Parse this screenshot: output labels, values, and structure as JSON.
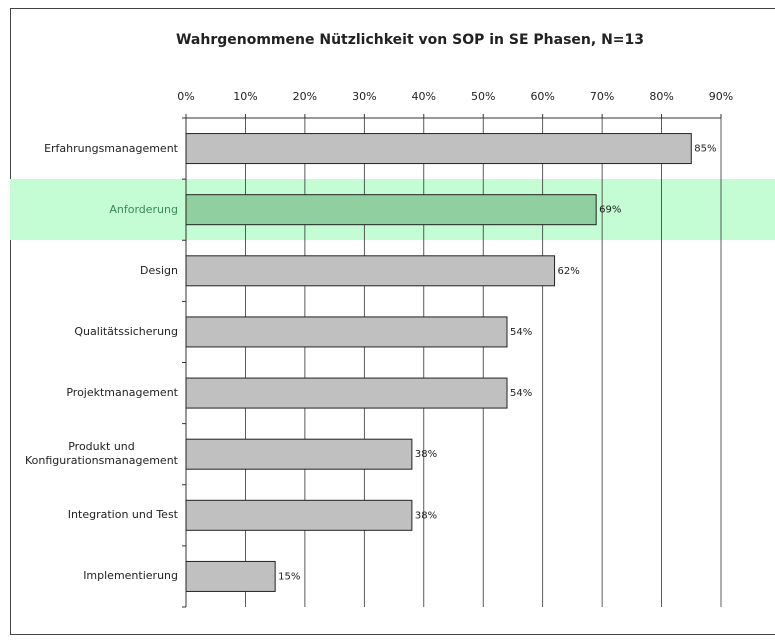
{
  "chart_data": {
    "type": "bar",
    "orientation": "horizontal",
    "title": "Wahrgenommene Nützlichkeit von SOP in SE Phasen, N=13",
    "categories": [
      "Erfahrungsmanagement",
      "Anforderung",
      "Design",
      "Qualitätssicherung",
      "Projektmanagement",
      "Produkt und\nKonfigurationsmanagement",
      "Integration und Test",
      "Implementierung"
    ],
    "values": [
      85,
      69,
      62,
      54,
      54,
      38,
      38,
      15
    ],
    "value_labels": [
      "85%",
      "69%",
      "62%",
      "54%",
      "54%",
      "38%",
      "38%",
      "15%"
    ],
    "colors": [
      "#c0c0c0",
      "#90d0a0",
      "#c0c0c0",
      "#c0c0c0",
      "#c0c0c0",
      "#c0c0c0",
      "#c0c0c0",
      "#c0c0c0"
    ],
    "xlim": [
      0,
      90
    ],
    "xticks": [
      {
        "value": 0,
        "label": "0%"
      },
      {
        "value": 10,
        "label": "10%"
      },
      {
        "value": 20,
        "label": "20%"
      },
      {
        "value": 30,
        "label": "30%"
      },
      {
        "value": 40,
        "label": "40%"
      },
      {
        "value": 50,
        "label": "50%"
      },
      {
        "value": 60,
        "label": "60%"
      },
      {
        "value": 70,
        "label": "70%"
      },
      {
        "value": 80,
        "label": "80%"
      },
      {
        "value": 90,
        "label": "90%"
      }
    ],
    "grid": true
  }
}
